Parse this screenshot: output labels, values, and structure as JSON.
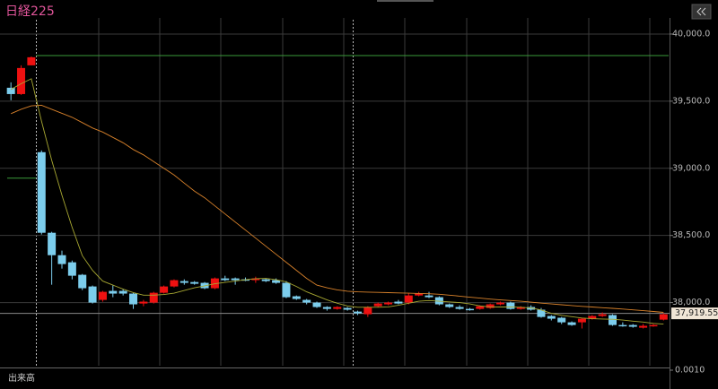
{
  "chart_data": {
    "type": "candlestick",
    "title": "日経225",
    "open": [
      39600,
      39553,
      39767,
      39120,
      38520,
      38353,
      38300,
      38207,
      38120,
      38020,
      38087,
      38087,
      38067,
      37993,
      38000,
      38073,
      38120,
      38160,
      38153,
      38147,
      38107,
      38180,
      38180,
      38173,
      38167,
      38173,
      38167,
      38147,
      38047,
      38020,
      38000,
      37967,
      37953,
      37960,
      37933,
      37913,
      37973,
      37987,
      38007,
      38000,
      38053,
      38053,
      38040,
      37987,
      37967,
      37953,
      37953,
      37960,
      37987,
      38000,
      37953,
      37967,
      37947,
      37900,
      37887,
      37853,
      37853,
      37880,
      37900,
      37907,
      37833,
      37833,
      37813,
      37827,
      37873
    ],
    "high": [
      39640,
      39767,
      39833,
      39133,
      38527,
      38387,
      38313,
      38213,
      38127,
      38087,
      38127,
      38100,
      38073,
      38020,
      38080,
      38127,
      38173,
      38173,
      38160,
      38153,
      38187,
      38200,
      38187,
      38187,
      38193,
      38180,
      38180,
      38160,
      38053,
      38027,
      38007,
      37973,
      37973,
      37967,
      37940,
      37973,
      38000,
      38007,
      38020,
      38067,
      38080,
      38080,
      38047,
      37993,
      37980,
      37960,
      37980,
      37993,
      38007,
      38007,
      37973,
      37980,
      37960,
      37907,
      37893,
      37860,
      37887,
      37907,
      37927,
      37913,
      37853,
      37840,
      37840,
      37840,
      37920
    ],
    "low": [
      39507,
      39547,
      39767,
      38507,
      38133,
      38253,
      38173,
      38093,
      37993,
      38007,
      38040,
      38053,
      37953,
      37973,
      37993,
      38067,
      38113,
      38133,
      38133,
      38100,
      38100,
      38160,
      38133,
      38160,
      38147,
      38153,
      38140,
      38033,
      38020,
      37987,
      37960,
      37940,
      37947,
      37940,
      37907,
      37893,
      37967,
      37980,
      37987,
      37987,
      38047,
      38033,
      37980,
      37960,
      37947,
      37940,
      37947,
      37953,
      37980,
      37947,
      37947,
      37940,
      37887,
      37867,
      37840,
      37827,
      37807,
      37873,
      37893,
      37827,
      37820,
      37813,
      37807,
      37820,
      37867
    ],
    "close": [
      39553,
      39747,
      39827,
      38520,
      38353,
      38287,
      38200,
      38107,
      38000,
      38080,
      38067,
      38067,
      37987,
      38007,
      38073,
      38120,
      38167,
      38147,
      38140,
      38107,
      38180,
      38167,
      38167,
      38167,
      38180,
      38160,
      38147,
      38040,
      38027,
      38000,
      37967,
      37953,
      37967,
      37947,
      37920,
      37967,
      37993,
      38000,
      37993,
      38053,
      38067,
      38040,
      37987,
      37967,
      37953,
      37947,
      37973,
      37987,
      38000,
      37953,
      37967,
      37947,
      37893,
      37880,
      37853,
      37833,
      37880,
      37900,
      37913,
      37833,
      37827,
      37820,
      37827,
      37833,
      37913
    ],
    "up_color": "#ee1111",
    "down_color": "#7ccdec",
    "moving_averages": [
      {
        "color": "#a8a832",
        "values": [
          39587,
          39630,
          39667,
          39350,
          39060,
          38800,
          38560,
          38350,
          38240,
          38160,
          38130,
          38100,
          38075,
          38055,
          38055,
          38060,
          38070,
          38090,
          38110,
          38125,
          38140,
          38150,
          38160,
          38170,
          38178,
          38180,
          38170,
          38155,
          38120,
          38080,
          38050,
          38020,
          37995,
          37975,
          37965,
          37965,
          37965,
          37968,
          37980,
          37995,
          38010,
          38015,
          38010,
          38005,
          38000,
          37990,
          37975,
          37968,
          37967,
          37968,
          37965,
          37960,
          37945,
          37920,
          37905,
          37895,
          37885,
          37880,
          37878,
          37876,
          37870,
          37862,
          37855,
          37845,
          37840
        ]
      },
      {
        "color": "#d9822b",
        "values": [
          39407,
          39440,
          39465,
          39470,
          39440,
          39410,
          39380,
          39340,
          39300,
          39270,
          39230,
          39190,
          39140,
          39100,
          39050,
          39000,
          38950,
          38890,
          38830,
          38780,
          38720,
          38660,
          38600,
          38540,
          38480,
          38420,
          38360,
          38300,
          38240,
          38180,
          38130,
          38110,
          38095,
          38085,
          38080,
          38078,
          38076,
          38074,
          38072,
          38070,
          38068,
          38066,
          38062,
          38055,
          38048,
          38040,
          38033,
          38026,
          38020,
          38015,
          38010,
          38003,
          37996,
          37990,
          37984,
          37978,
          37972,
          37967,
          37962,
          37957,
          37952,
          37946,
          37940,
          37934,
          37927
        ]
      }
    ],
    "hlines": [
      {
        "value": 39840,
        "color": "#3a9a3a"
      },
      {
        "value": 38927,
        "color": "#3a9a3a"
      }
    ],
    "last_price": {
      "value": 37919.55,
      "label": "37,919.55"
    },
    "ylim": [
      37550,
      40120
    ],
    "yticks": [
      {
        "value": 38000,
        "label": "38,000.0"
      },
      {
        "value": 38500,
        "label": "38,500.0"
      },
      {
        "value": 39000,
        "label": "39,000.0"
      },
      {
        "value": 39500,
        "label": "39,500.0"
      },
      {
        "value": 40000,
        "label": "40,000.0"
      }
    ],
    "grid": true,
    "volume": {
      "label": "出来高",
      "yticks": [
        {
          "value": 0.001,
          "label": "0.0010"
        }
      ]
    }
  }
}
